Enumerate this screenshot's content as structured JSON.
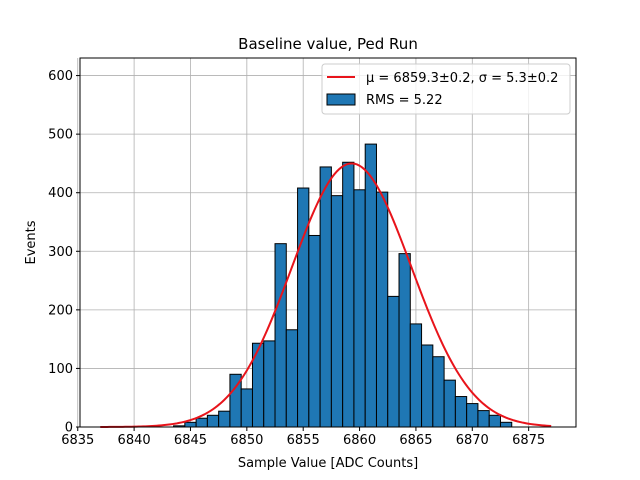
{
  "chart_data": {
    "type": "bar",
    "title": "Baseline value, Ped Run",
    "xlabel": "Sample Value [ADC Counts]",
    "ylabel": "Events",
    "xlim": [
      6835.2,
      6879.2
    ],
    "ylim": [
      0,
      630
    ],
    "xticks": [
      6835,
      6840,
      6845,
      6850,
      6855,
      6860,
      6865,
      6870,
      6875
    ],
    "yticks": [
      0,
      100,
      200,
      300,
      400,
      500,
      600
    ],
    "grid": true,
    "legend_position": "top-right",
    "colors": {
      "bars": "#1f77b4",
      "fit": "#e8141b",
      "grid": "#b0b0b0"
    },
    "histogram": {
      "name": "RMS = 5.22",
      "bin_width": 1.0,
      "bin_start": 6843.5,
      "values": [
        2,
        8,
        15,
        20,
        27,
        90,
        65,
        143,
        147,
        313,
        166,
        408,
        327,
        444,
        395,
        452,
        405,
        483,
        401,
        223,
        296,
        176,
        140,
        120,
        80,
        52,
        40,
        28,
        20,
        8
      ]
    },
    "fit": {
      "name": "μ = 6859.3±0.2, σ = 5.3±0.2",
      "type": "gaussian",
      "mu": 6859.3,
      "sigma": 5.3,
      "amplitude": 450,
      "x_range": [
        6837,
        6877
      ]
    }
  }
}
